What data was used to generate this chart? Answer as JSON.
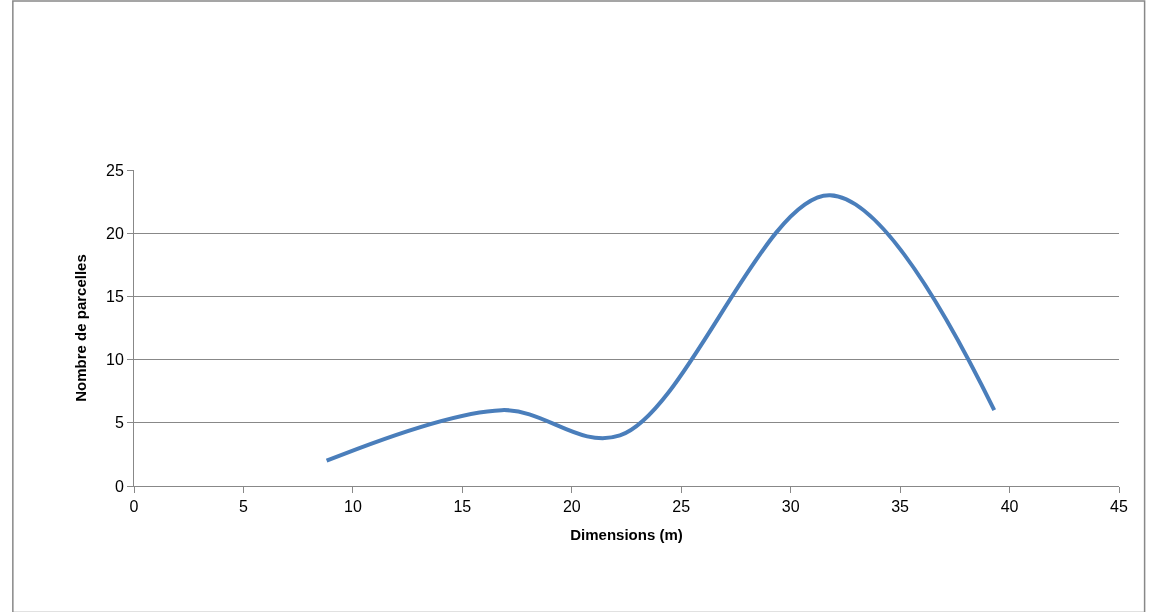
{
  "chart_data": {
    "type": "line",
    "xlabel": "Dimensions (m)",
    "ylabel": "Nombre de parcelles",
    "x": [
      8.8,
      16.8,
      22.2,
      31.8,
      39.3
    ],
    "series": [
      {
        "color": "#4a7ebb",
        "values": [
          2,
          6,
          4,
          23,
          6
        ]
      }
    ],
    "xlim": [
      0,
      45
    ],
    "xticks": [
      0,
      5,
      10,
      15,
      20,
      25,
      30,
      35,
      40,
      45
    ],
    "ylim": [
      0,
      25
    ],
    "yticks": [
      0,
      5,
      10,
      15,
      20,
      25
    ],
    "grid": "y",
    "legend": false,
    "marker": "none",
    "line_style": "solid"
  }
}
